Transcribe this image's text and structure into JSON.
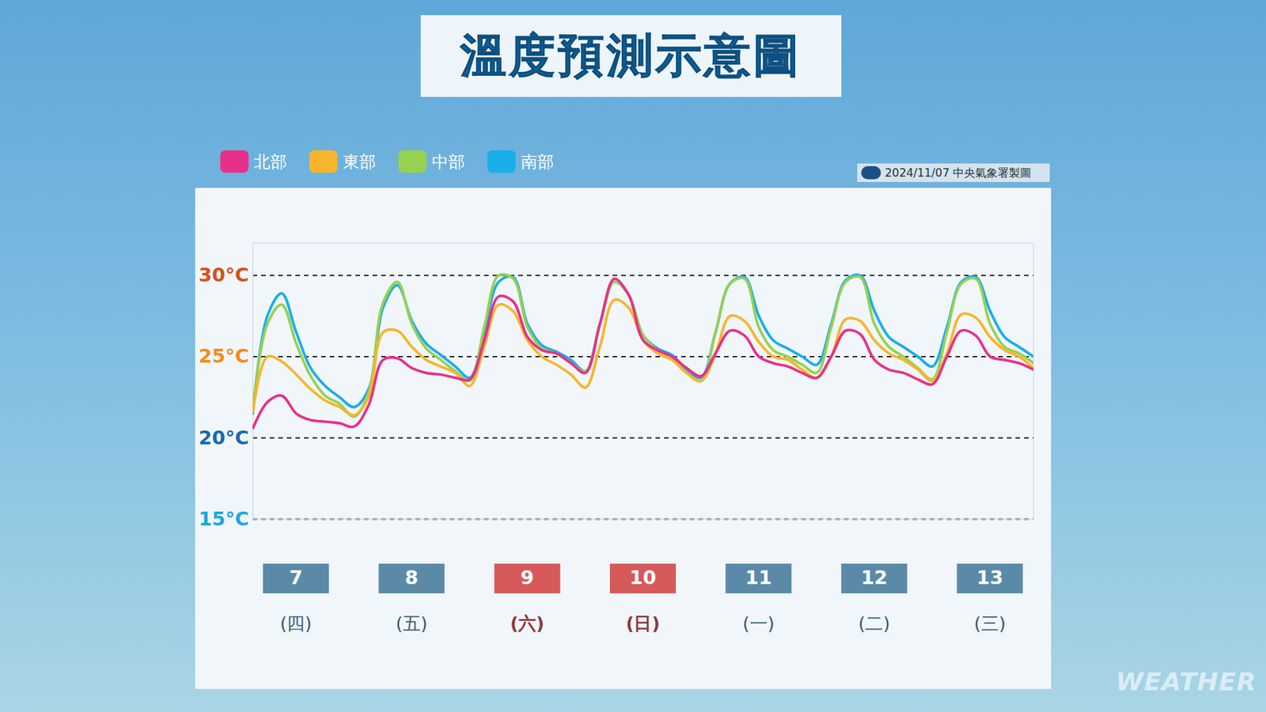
{
  "chart_data": {
    "type": "line",
    "title": "溫度預測示意圖",
    "source": "2024/11/07 中央氣象署製圖",
    "watermark": "WEATHER",
    "categories": [
      null,
      null,
      null,
      "7\n(四)",
      null,
      null,
      null,
      null,
      null,
      null,
      null,
      "8\n(五)",
      null,
      null,
      null,
      null,
      null,
      null,
      null,
      "9\n(六)",
      null,
      null,
      null,
      null,
      null,
      null,
      null,
      "10\n(日)",
      null,
      null,
      null,
      null,
      null,
      null,
      null,
      "11\n(一)",
      null,
      null,
      null,
      null,
      null,
      null,
      null,
      "12\n(二)",
      null,
      null,
      null,
      null,
      null,
      null,
      null,
      "13\n(三)",
      null,
      null,
      null
    ],
    "category_colors": [
      null,
      null,
      null,
      "#5b8aa8",
      null,
      null,
      null,
      null,
      null,
      null,
      null,
      "#5b8aa8",
      null,
      null,
      null,
      null,
      null,
      null,
      null,
      "#d65a5a",
      null,
      null,
      null,
      null,
      null,
      null,
      null,
      "#d65a5a",
      null,
      null,
      null,
      null,
      null,
      null,
      null,
      "#5b8aa8",
      null,
      null,
      null,
      null,
      null,
      null,
      null,
      "#5b8aa8",
      null,
      null,
      null,
      null,
      null,
      null,
      null,
      "#5b8aa8",
      null,
      null,
      null
    ],
    "series": [
      {
        "name": "北部",
        "color": "#e8308a",
        "values": [
          20.6,
          22.2,
          22.6,
          21.5,
          21.1,
          21.0,
          20.9,
          20.7,
          22.0,
          24.8,
          24.9,
          24.3,
          24.0,
          23.9,
          23.7,
          23.6,
          26.0,
          28.7,
          28.4,
          26.2,
          25.4,
          25.2,
          24.6,
          24.0,
          27.0,
          29.8,
          28.8,
          26.0,
          25.4,
          25.0,
          24.3,
          23.8,
          25.2,
          26.6,
          26.3,
          25.0,
          24.6,
          24.4,
          24.0,
          23.7,
          25.0,
          26.6,
          26.4,
          24.8,
          24.2,
          24.0,
          23.6,
          23.3,
          25.0,
          26.6,
          26.3,
          25.0,
          24.8,
          24.6,
          24.2
        ]
      },
      {
        "name": "東部",
        "color": "#f7b52c",
        "values": [
          21.6,
          25.0,
          24.7,
          23.9,
          23.0,
          22.3,
          21.9,
          21.4,
          22.5,
          26.5,
          26.6,
          25.6,
          24.8,
          24.4,
          24.0,
          23.2,
          25.6,
          28.2,
          27.8,
          26.0,
          25.0,
          24.5,
          23.9,
          23.1,
          25.6,
          28.5,
          28.0,
          26.0,
          25.2,
          24.8,
          24.0,
          23.5,
          25.2,
          27.5,
          27.2,
          25.9,
          25.0,
          24.8,
          24.2,
          23.7,
          25.0,
          27.3,
          27.2,
          26.0,
          25.2,
          24.8,
          24.2,
          23.5,
          25.2,
          27.6,
          27.4,
          26.2,
          25.4,
          25.0,
          24.3
        ]
      },
      {
        "name": "中部",
        "color": "#96d152",
        "values": [
          21.8,
          27.0,
          28.2,
          25.8,
          23.8,
          22.6,
          22.1,
          21.3,
          22.8,
          28.3,
          29.6,
          27.0,
          25.5,
          24.8,
          24.1,
          23.5,
          26.8,
          30.0,
          29.8,
          26.8,
          25.5,
          25.2,
          24.6,
          24.1,
          27.0,
          29.6,
          28.8,
          26.3,
          25.4,
          24.9,
          24.0,
          23.5,
          26.5,
          29.5,
          29.8,
          26.8,
          25.4,
          25.0,
          24.5,
          24.0,
          26.8,
          29.6,
          29.9,
          27.0,
          25.6,
          25.0,
          24.3,
          23.6,
          26.5,
          29.5,
          29.8,
          27.0,
          25.6,
          25.2,
          24.6
        ]
      },
      {
        "name": "南部",
        "color": "#19aeea",
        "values": [
          21.5,
          27.5,
          28.9,
          26.5,
          24.3,
          23.2,
          22.5,
          21.9,
          23.0,
          28.0,
          29.4,
          27.2,
          25.8,
          25.1,
          24.4,
          23.7,
          26.5,
          29.6,
          29.9,
          27.0,
          25.7,
          25.3,
          24.8,
          24.1,
          27.0,
          29.6,
          28.8,
          26.3,
          25.5,
          25.1,
          24.2,
          23.7,
          26.5,
          29.5,
          29.9,
          27.5,
          26.0,
          25.5,
          25.0,
          24.5,
          27.0,
          29.7,
          30.0,
          27.8,
          26.2,
          25.6,
          25.0,
          24.4,
          26.8,
          29.6,
          29.9,
          27.8,
          26.2,
          25.6,
          25.0
        ]
      }
    ],
    "ylim": [
      15,
      32
    ],
    "yticks": [
      {
        "value": 15,
        "label": "15°C"
      },
      {
        "value": 20,
        "label": "20°C"
      },
      {
        "value": 25,
        "label": "25°C"
      },
      {
        "value": 30,
        "label": "30°C"
      }
    ],
    "grid": true,
    "legend": "top-left"
  }
}
